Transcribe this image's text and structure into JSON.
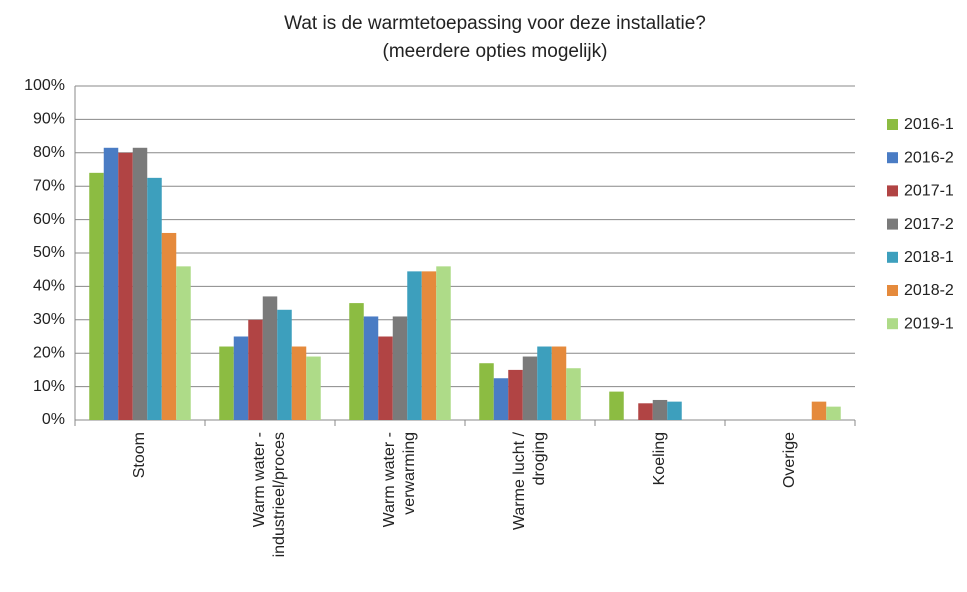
{
  "chart_data": {
    "type": "bar",
    "title": "Wat is de warmtetoepassing voor deze installatie?",
    "subtitle": "(meerdere opties mogelijk)",
    "categories": [
      [
        "Stoom"
      ],
      [
        "Warm water -",
        "industrieel/proces"
      ],
      [
        "Warm water -",
        "verwarming"
      ],
      [
        "Warme lucht /",
        "droging"
      ],
      [
        "Koeling"
      ],
      [
        "Overige"
      ]
    ],
    "series": [
      {
        "name": "2016-1",
        "color": "#8cbc42",
        "values": [
          74,
          22,
          35,
          17,
          8.5,
          0
        ]
      },
      {
        "name": "2016-2",
        "color": "#4a7cc4",
        "values": [
          81.5,
          25,
          31,
          12.5,
          0,
          0
        ]
      },
      {
        "name": "2017-1",
        "color": "#b14444",
        "values": [
          80,
          30,
          25,
          15,
          5,
          0
        ]
      },
      {
        "name": "2017-2",
        "color": "#7a7a7a",
        "values": [
          81.5,
          37,
          31,
          19,
          6,
          0
        ]
      },
      {
        "name": "2018-1",
        "color": "#3d9fbd",
        "values": [
          72.5,
          33,
          44.5,
          22,
          5.5,
          0
        ]
      },
      {
        "name": "2018-2",
        "color": "#e58a3c",
        "values": [
          56,
          22,
          44.5,
          22,
          0,
          5.5
        ]
      },
      {
        "name": "2019-1",
        "color": "#aedb88",
        "values": [
          46,
          19,
          46,
          15.5,
          0,
          4
        ]
      }
    ],
    "ylim": [
      0,
      100
    ],
    "yticks": [
      {
        "value": 0,
        "label": "0%"
      },
      {
        "value": 10,
        "label": "10%"
      },
      {
        "value": 20,
        "label": "20%"
      },
      {
        "value": 30,
        "label": "30%"
      },
      {
        "value": 40,
        "label": "40%"
      },
      {
        "value": 50,
        "label": "50%"
      },
      {
        "value": 60,
        "label": "60%"
      },
      {
        "value": 70,
        "label": "70%"
      },
      {
        "value": 80,
        "label": "80%"
      },
      {
        "value": 90,
        "label": "90%"
      },
      {
        "value": 100,
        "label": "100%"
      }
    ],
    "grid": true,
    "legend": "right"
  }
}
